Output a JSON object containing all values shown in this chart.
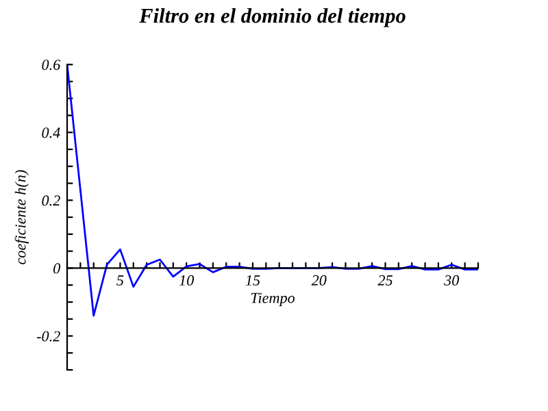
{
  "chart_data": {
    "type": "line",
    "title": "Filtro en el dominio del tiempo",
    "xlabel": "Tiempo",
    "ylabel": "coeficiente h(n)",
    "x": [
      1,
      2,
      3,
      4,
      5,
      6,
      7,
      8,
      9,
      10,
      11,
      12,
      13,
      14,
      15,
      16,
      17,
      18,
      19,
      20,
      21,
      22,
      23,
      24,
      25,
      26,
      27,
      28,
      29,
      30,
      31,
      32
    ],
    "series": [
      {
        "color": "#0000ff",
        "values": [
          0.6,
          0.23,
          -0.14,
          0.01,
          0.055,
          -0.055,
          0.01,
          0.025,
          -0.025,
          0.005,
          0.012,
          -0.012,
          0.004,
          0.004,
          -0.002,
          -0.002,
          0,
          0,
          0,
          0,
          0.003,
          -0.002,
          -0.002,
          0.006,
          -0.003,
          -0.003,
          0.006,
          -0.004,
          -0.004,
          0.01,
          -0.004,
          -0.004
        ]
      }
    ],
    "xlim": [
      1,
      32
    ],
    "xticks": [
      {
        "value": 1,
        "label": null
      },
      {
        "value": 2,
        "label": null
      },
      {
        "value": 3,
        "label": null
      },
      {
        "value": 4,
        "label": null
      },
      5,
      {
        "value": 6,
        "label": null
      },
      {
        "value": 7,
        "label": null
      },
      {
        "value": 8,
        "label": null
      },
      {
        "value": 9,
        "label": null
      },
      10,
      {
        "value": 11,
        "label": null
      },
      {
        "value": 12,
        "label": null
      },
      {
        "value": 13,
        "label": null
      },
      {
        "value": 14,
        "label": null
      },
      15,
      {
        "value": 16,
        "label": null
      },
      {
        "value": 17,
        "label": null
      },
      {
        "value": 18,
        "label": null
      },
      {
        "value": 19,
        "label": null
      },
      20,
      {
        "value": 21,
        "label": null
      },
      {
        "value": 22,
        "label": null
      },
      {
        "value": 23,
        "label": null
      },
      {
        "value": 24,
        "label": null
      },
      25,
      {
        "value": 26,
        "label": null
      },
      {
        "value": 27,
        "label": null
      },
      {
        "value": 28,
        "label": null
      },
      {
        "value": 29,
        "label": null
      },
      30,
      {
        "value": 31,
        "label": null
      },
      {
        "value": 32,
        "label": null
      }
    ],
    "ylim": [
      -0.3,
      0.6
    ],
    "yticks": [
      {
        "value": -0.3,
        "label": null
      },
      {
        "value": -0.25,
        "label": null
      },
      -0.2,
      {
        "value": -0.15,
        "label": null
      },
      {
        "value": -0.1,
        "label": null
      },
      {
        "value": -0.05,
        "label": null
      },
      0,
      {
        "value": 0.05,
        "label": null
      },
      {
        "value": 0.1,
        "label": null
      },
      {
        "value": 0.15,
        "label": null
      },
      0.2,
      {
        "value": 0.25,
        "label": null
      },
      {
        "value": 0.3,
        "label": null
      },
      {
        "value": 0.35,
        "label": null
      },
      0.4,
      {
        "value": 0.45,
        "label": null
      },
      {
        "value": 0.5,
        "label": null
      },
      {
        "value": 0.55,
        "label": null
      },
      0.6
    ],
    "grid": false,
    "legend": false,
    "marker": "none",
    "line_style": "solid"
  }
}
